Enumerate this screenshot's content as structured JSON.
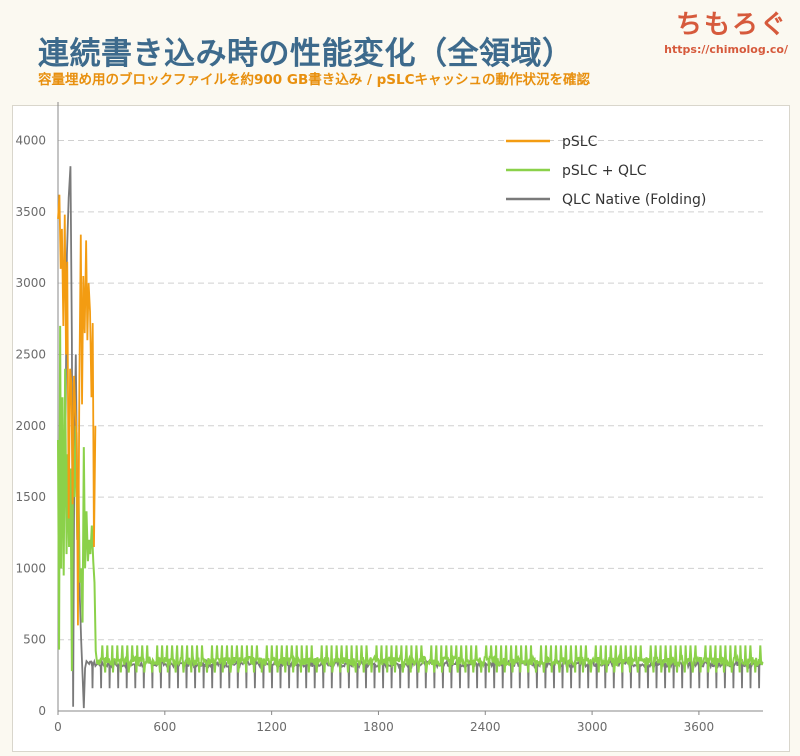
{
  "header": {
    "title": "連続書き込み時の性能変化（全領域）",
    "subtitle": "容量埋め用のブロックファイルを約900 GB書き込み / pSLCキャッシュの動作状況を確認",
    "brand_name": "ちもろぐ",
    "brand_url": "https://chimolog.co/"
  },
  "chart_data": {
    "type": "line",
    "title": "連続書き込み時の性能変化（全領域）",
    "xlabel": "",
    "ylabel": "",
    "xlim": [
      0,
      3960
    ],
    "ylim": [
      0,
      4200
    ],
    "x_ticks": [
      0,
      600,
      1200,
      1800,
      2400,
      3000,
      3600
    ],
    "y_ticks": [
      0,
      500,
      1000,
      1500,
      2000,
      2500,
      3000,
      3500,
      4000
    ],
    "grid": "horizontal dashed",
    "legend_position": "top-right",
    "series": [
      {
        "name": "pSLC",
        "color": "#f39c12",
        "x_range": [
          0,
          210
        ],
        "points": [
          [
            0,
            3450
          ],
          [
            8,
            3620
          ],
          [
            15,
            3100
          ],
          [
            22,
            3380
          ],
          [
            30,
            2700
          ],
          [
            38,
            3480
          ],
          [
            45,
            2500
          ],
          [
            52,
            3150
          ],
          [
            60,
            1350
          ],
          [
            68,
            2400
          ],
          [
            75,
            2300
          ],
          [
            82,
            1450
          ],
          [
            90,
            2350
          ],
          [
            98,
            2100
          ],
          [
            105,
            1950
          ],
          [
            112,
            600
          ],
          [
            120,
            2300
          ],
          [
            128,
            3340
          ],
          [
            135,
            2150
          ],
          [
            142,
            3050
          ],
          [
            150,
            2650
          ],
          [
            158,
            3300
          ],
          [
            165,
            2600
          ],
          [
            172,
            3000
          ],
          [
            180,
            2800
          ],
          [
            188,
            2200
          ],
          [
            195,
            2720
          ],
          [
            202,
            1150
          ],
          [
            210,
            2000
          ]
        ]
      },
      {
        "name": "pSLC + QLC",
        "color": "#8bd14a",
        "x_range": [
          0,
          3960
        ],
        "points": [
          [
            0,
            1900
          ],
          [
            6,
            430
          ],
          [
            12,
            2700
          ],
          [
            18,
            1000
          ],
          [
            25,
            2200
          ],
          [
            32,
            950
          ],
          [
            40,
            2400
          ],
          [
            48,
            1100
          ],
          [
            55,
            1800
          ],
          [
            62,
            1150
          ],
          [
            70,
            1700
          ],
          [
            78,
            280
          ],
          [
            85,
            1900
          ],
          [
            92,
            1500
          ],
          [
            100,
            2000
          ],
          [
            108,
            1200
          ],
          [
            115,
            1600
          ],
          [
            122,
            900
          ],
          [
            130,
            1000
          ],
          [
            138,
            620
          ],
          [
            145,
            1850
          ],
          [
            152,
            1000
          ],
          [
            160,
            1400
          ],
          [
            168,
            1050
          ],
          [
            175,
            1200
          ],
          [
            182,
            1100
          ],
          [
            190,
            1300
          ],
          [
            198,
            1050
          ],
          [
            205,
            900
          ],
          [
            212,
            420
          ],
          [
            220,
            330
          ]
        ],
        "steady_state_mbps": 350,
        "steady_state_spike_mbps": 460,
        "steady_state_dip_mbps": 270
      },
      {
        "name": "QLC Native (Folding)",
        "color": "#7a7a7a",
        "x_range": [
          0,
          3960
        ],
        "points": [
          [
            40,
            1600
          ],
          [
            50,
            3200
          ],
          [
            60,
            3600
          ],
          [
            70,
            3820
          ],
          [
            78,
            2600
          ],
          [
            85,
            30
          ],
          [
            92,
            1900
          ],
          [
            100,
            2500
          ],
          [
            110,
            1300
          ],
          [
            120,
            900
          ],
          [
            130,
            500
          ],
          [
            138,
            250
          ],
          [
            145,
            20
          ],
          [
            152,
            300
          ],
          [
            160,
            350
          ],
          [
            175,
            330
          ]
        ],
        "steady_state_mbps": 330,
        "dip_mbps": 160
      }
    ]
  }
}
